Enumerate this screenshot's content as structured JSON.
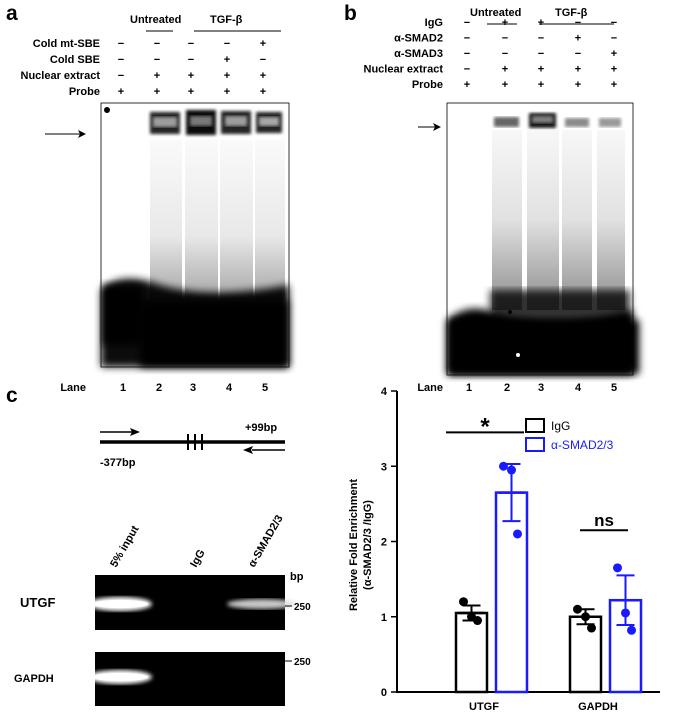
{
  "panels": {
    "a": "a",
    "b": "b",
    "c": "c"
  },
  "sign_minus": "−",
  "sign_plus": "+",
  "panel_a": {
    "groups": {
      "untreated": "Untreated",
      "treated": "TGF-β"
    },
    "rows": [
      {
        "label": "Cold mt-SBE",
        "marks": [
          "−",
          "−",
          "−",
          "−",
          "+"
        ]
      },
      {
        "label": "Cold SBE",
        "marks": [
          "−",
          "−",
          "−",
          "+",
          "−"
        ]
      },
      {
        "label": "Nuclear extract",
        "marks": [
          "−",
          "+",
          "+",
          "+",
          "+"
        ]
      },
      {
        "label": "Probe",
        "marks": [
          "+",
          "+",
          "+",
          "+",
          "+"
        ]
      }
    ],
    "lane_label": "Lane",
    "lanes": [
      "1",
      "2",
      "3",
      "4",
      "5"
    ]
  },
  "panel_b": {
    "groups": {
      "untreated": "Untreated",
      "treated": "TGF-β"
    },
    "rows": [
      {
        "label": "IgG",
        "marks": [
          "−",
          "+",
          "+",
          "−",
          "−"
        ]
      },
      {
        "label": "α-SMAD2",
        "marks": [
          "−",
          "−",
          "−",
          "+",
          "−"
        ]
      },
      {
        "label": "α-SMAD3",
        "marks": [
          "−",
          "−",
          "−",
          "−",
          "+"
        ]
      },
      {
        "label": "Nuclear extract",
        "marks": [
          "−",
          "+",
          "+",
          "+",
          "+"
        ]
      },
      {
        "label": "Probe",
        "marks": [
          "+",
          "+",
          "+",
          "+",
          "+"
        ]
      }
    ],
    "lane_label": "Lane",
    "lanes": [
      "1",
      "2",
      "3",
      "4",
      "5"
    ]
  },
  "panel_c": {
    "schematic": {
      "left_pos": "-377bp",
      "right_pos": "+99bp"
    },
    "gel_columns": [
      "5% input",
      "IgG",
      "α-SMAD2/3"
    ],
    "bp_label": "bp",
    "gel_rows": [
      {
        "label": "UTGF",
        "marker": "250"
      },
      {
        "label": "GAPDH",
        "marker": "250"
      }
    ]
  },
  "chart_data": {
    "type": "bar",
    "categories": [
      "UTGF",
      "GAPDH"
    ],
    "ylabel_line1": "Relative Fold Enrichment",
    "ylabel_line2": "(α-SMAD2/3 /IgG)",
    "ylim": [
      0,
      4
    ],
    "yticks": [
      "0",
      "1",
      "2",
      "3",
      "4"
    ],
    "series": [
      {
        "name": "IgG",
        "color": "#000000",
        "values": [
          1.05,
          1.0
        ],
        "errors": [
          0.1,
          0.1
        ],
        "points": [
          [
            1.2,
            1.0,
            0.95
          ],
          [
            1.1,
            1.0,
            0.85
          ]
        ]
      },
      {
        "name": "α-SMAD2/3",
        "color": "#1a1aff",
        "values": [
          2.65,
          1.22
        ],
        "errors": [
          0.38,
          0.33
        ],
        "points": [
          [
            3.0,
            2.95,
            2.1
          ],
          [
            1.65,
            1.05,
            0.82
          ]
        ]
      }
    ],
    "annotations": [
      {
        "category": "UTGF",
        "text": "*"
      },
      {
        "category": "GAPDH",
        "text": "ns"
      }
    ],
    "legend_position": "top-right"
  }
}
